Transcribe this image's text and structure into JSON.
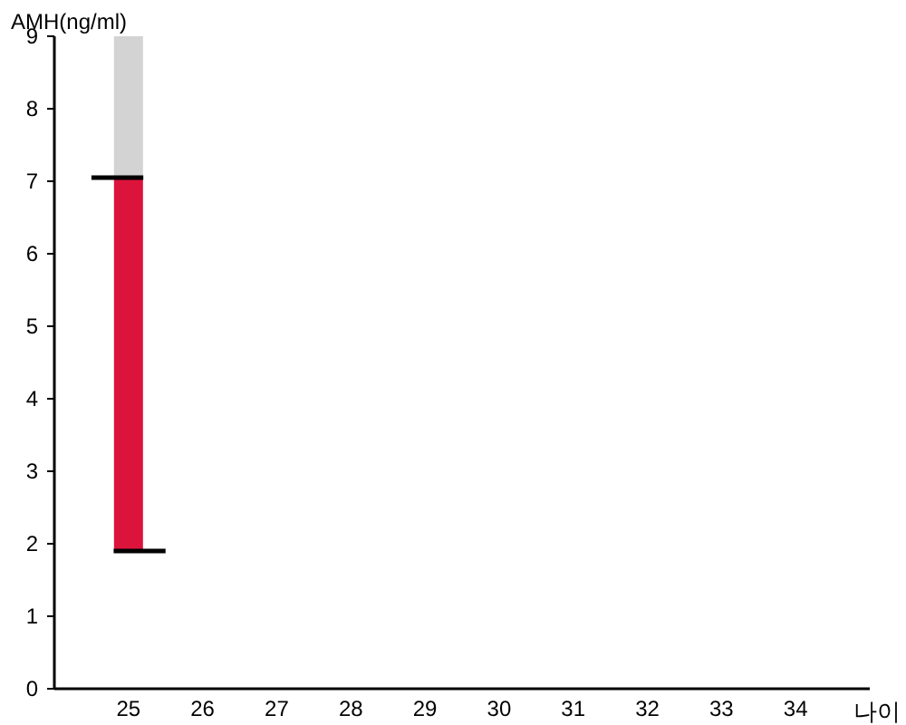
{
  "chart_data": {
    "type": "bar",
    "xlabel": "나이",
    "ylabel": "AMH(ng/ml)",
    "x": [
      25
    ],
    "series": [
      {
        "color": "#dc143c",
        "base": [
          1.9
        ],
        "values": [
          5.15
        ]
      },
      {
        "color": "#d3d3d3",
        "base": [
          7.05
        ],
        "values": [
          1.95
        ]
      },
      {
        "type": "line",
        "color": "#000000",
        "x": [
          24.5,
          25.2
        ],
        "values": [
          7.05,
          7.05
        ]
      },
      {
        "type": "line",
        "color": "#000000",
        "x": [
          24.8,
          25.5
        ],
        "values": [
          1.9,
          1.9
        ]
      }
    ],
    "xlim": [
      24,
      35
    ],
    "xticks": [
      25,
      26,
      27,
      28,
      29,
      30,
      31,
      32,
      33,
      34
    ],
    "ylim": [
      0,
      9
    ],
    "yticks": [
      0,
      1,
      2,
      3,
      4,
      5,
      6,
      7,
      8,
      9
    ]
  }
}
